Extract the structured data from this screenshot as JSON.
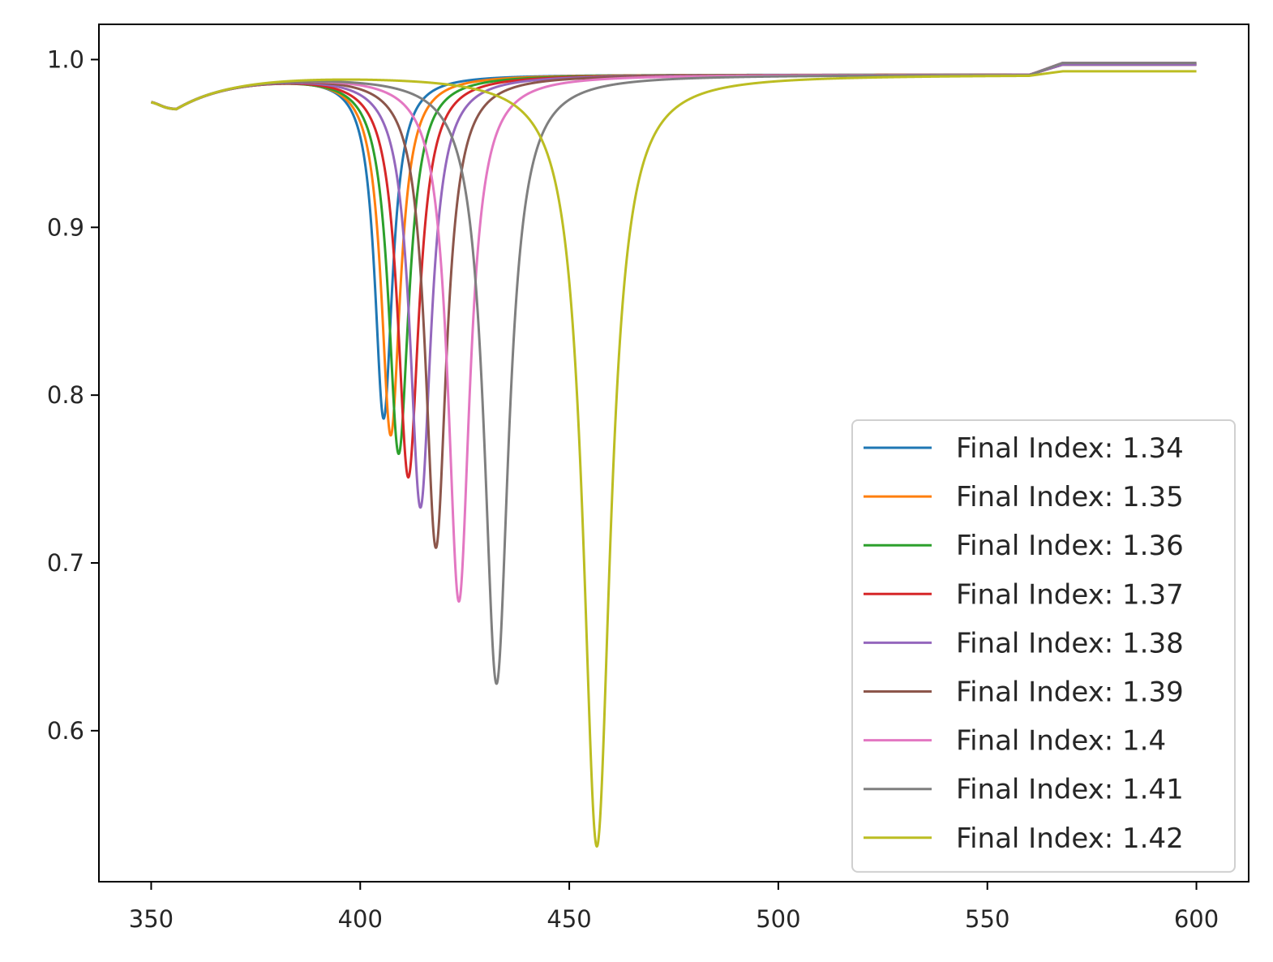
{
  "chart_data": {
    "type": "line",
    "title": "",
    "xlabel": "",
    "ylabel": "",
    "xlim": [
      337.5,
      612.5
    ],
    "ylim": [
      0.51,
      1.021
    ],
    "xticks": [
      350,
      400,
      450,
      500,
      550,
      600
    ],
    "yticks": [
      0.6,
      0.7,
      0.8,
      0.9,
      1.0
    ],
    "xtick_labels": [
      "350",
      "400",
      "450",
      "500",
      "550",
      "600"
    ],
    "ytick_labels": [
      "0.6",
      "0.7",
      "0.8",
      "0.9",
      "1.0"
    ],
    "grid": false,
    "legend_position": "lower-right",
    "series": [
      {
        "name": "Final Index: 1.34",
        "color": "#1f77b4",
        "dip_x": 405.6,
        "dip_y": 0.786,
        "width": 2.6,
        "end_y": 0.997
      },
      {
        "name": "Final Index: 1.35",
        "color": "#ff7f0e",
        "dip_x": 407.3,
        "dip_y": 0.776,
        "width": 2.8,
        "end_y": 0.997
      },
      {
        "name": "Final Index: 1.36",
        "color": "#2ca02c",
        "dip_x": 409.2,
        "dip_y": 0.765,
        "width": 3.0,
        "end_y": 0.997
      },
      {
        "name": "Final Index: 1.37",
        "color": "#d62728",
        "dip_x": 411.5,
        "dip_y": 0.751,
        "width": 3.1,
        "end_y": 0.997
      },
      {
        "name": "Final Index: 1.38",
        "color": "#9467bd",
        "dip_x": 414.4,
        "dip_y": 0.733,
        "width": 3.1,
        "end_y": 0.997
      },
      {
        "name": "Final Index: 1.39",
        "color": "#8c564b",
        "dip_x": 418.1,
        "dip_y": 0.709,
        "width": 3.1,
        "end_y": 0.998
      },
      {
        "name": "Final Index: 1.4",
        "color": "#e377c2",
        "dip_x": 423.6,
        "dip_y": 0.677,
        "width": 3.2,
        "end_y": 0.998
      },
      {
        "name": "Final Index: 1.41",
        "color": "#7f7f7f",
        "dip_x": 432.6,
        "dip_y": 0.628,
        "width": 3.6,
        "end_y": 0.998
      },
      {
        "name": "Final Index: 1.42",
        "color": "#bcbd22",
        "dip_x": 456.6,
        "dip_y": 0.531,
        "width": 4.0,
        "end_y": 0.993
      }
    ]
  }
}
